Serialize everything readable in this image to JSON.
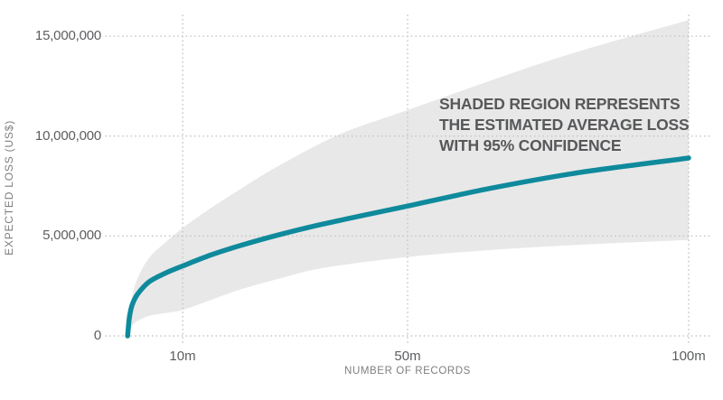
{
  "chart": {
    "y_axis": {
      "title": "EXPECTED LOSS (US$)",
      "ticks": [
        {
          "value": 0,
          "label": "0"
        },
        {
          "value": 5000000,
          "label": "5,000,000"
        },
        {
          "value": 10000000,
          "label": "10,000,000"
        },
        {
          "value": 15000000,
          "label": "15,000,000"
        }
      ]
    },
    "x_axis": {
      "title": "NUMBER OF RECORDS",
      "ticks": [
        {
          "value": 10,
          "label": "10m"
        },
        {
          "value": 50,
          "label": "50m"
        },
        {
          "value": 100,
          "label": "100m"
        }
      ]
    },
    "annotation": {
      "lines": [
        "SHADED REGION REPRESENTS",
        "THE ESTIMATED AVERAGE LOSS",
        "WITH 95% CONFIDENCE"
      ]
    },
    "colors": {
      "line": "#0f8a9c",
      "band": "#e8e8e8",
      "grid": "#c7c7c7",
      "tick_text": "#5d5e60",
      "axis_title_text": "#7d7e80",
      "annotation_text": "#57585a"
    }
  },
  "chart_data": {
    "type": "line",
    "title": "",
    "xlabel": "NUMBER OF RECORDS",
    "ylabel": "EXPECTED LOSS (US$)",
    "x_unit": "millions of records",
    "y_unit": "US$",
    "xlim": [
      0,
      104
    ],
    "ylim": [
      0,
      16600000
    ],
    "grid": "dotted",
    "annotation": "SHADED REGION REPRESENTS THE ESTIMATED AVERAGE LOSS WITH 95% CONFIDENCE",
    "series": [
      {
        "name": "expected_loss_mean",
        "style": "line",
        "x": [
          0.2,
          0.5,
          1,
          2,
          4,
          7,
          10,
          15,
          20,
          27,
          35,
          50,
          65,
          80,
          100
        ],
        "y": [
          0,
          900000,
          1550000,
          2100000,
          2700000,
          3150000,
          3500000,
          4050000,
          4500000,
          5050000,
          5600000,
          6500000,
          7400000,
          8150000,
          8900000
        ]
      },
      {
        "name": "confidence_upper_95",
        "style": "band_upper",
        "x": [
          0.2,
          0.5,
          1,
          2,
          4,
          7,
          10,
          15,
          20,
          27,
          38,
          50,
          65,
          80,
          100
        ],
        "y": [
          100000,
          1200000,
          2000000,
          2900000,
          3900000,
          4700000,
          5400000,
          6400000,
          7300000,
          8500000,
          10100000,
          11300000,
          12800000,
          14200000,
          15800000
        ]
      },
      {
        "name": "confidence_lower_95",
        "style": "band_lower",
        "x": [
          0.2,
          0.5,
          1,
          2,
          4,
          7,
          10,
          15,
          20,
          27,
          35,
          50,
          65,
          80,
          100
        ],
        "y": [
          0,
          200000,
          500000,
          750000,
          1000000,
          1150000,
          1300000,
          1800000,
          2300000,
          2850000,
          3400000,
          3950000,
          4300000,
          4550000,
          4800000
        ]
      }
    ]
  }
}
